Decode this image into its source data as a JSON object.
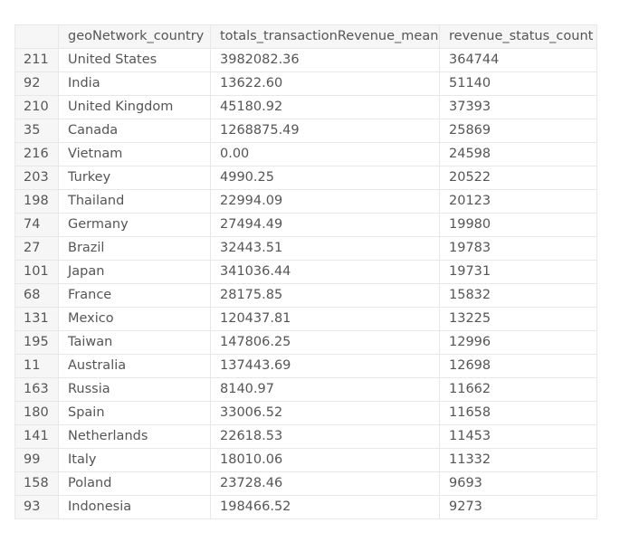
{
  "table": {
    "columns": [
      "",
      "geoNetwork_country",
      "totals_transactionRevenue_mean",
      "revenue_status_count"
    ],
    "rows": [
      [
        "211",
        "United States",
        "3982082.36",
        "364744"
      ],
      [
        "92",
        "India",
        "13622.60",
        "51140"
      ],
      [
        "210",
        "United Kingdom",
        "45180.92",
        "37393"
      ],
      [
        "35",
        "Canada",
        "1268875.49",
        "25869"
      ],
      [
        "216",
        "Vietnam",
        "0.00",
        "24598"
      ],
      [
        "203",
        "Turkey",
        "4990.25",
        "20522"
      ],
      [
        "198",
        "Thailand",
        "22994.09",
        "20123"
      ],
      [
        "74",
        "Germany",
        "27494.49",
        "19980"
      ],
      [
        "27",
        "Brazil",
        "32443.51",
        "19783"
      ],
      [
        "101",
        "Japan",
        "341036.44",
        "19731"
      ],
      [
        "68",
        "France",
        "28175.85",
        "15832"
      ],
      [
        "131",
        "Mexico",
        "120437.81",
        "13225"
      ],
      [
        "195",
        "Taiwan",
        "147806.25",
        "12996"
      ],
      [
        "11",
        "Australia",
        "137443.69",
        "12698"
      ],
      [
        "163",
        "Russia",
        "8140.97",
        "11662"
      ],
      [
        "180",
        "Spain",
        "33006.52",
        "11658"
      ],
      [
        "141",
        "Netherlands",
        "22618.53",
        "11453"
      ],
      [
        "99",
        "Italy",
        "18010.06",
        "11332"
      ],
      [
        "158",
        "Poland",
        "23728.46",
        "9693"
      ],
      [
        "93",
        "Indonesia",
        "198466.52",
        "9273"
      ]
    ]
  }
}
